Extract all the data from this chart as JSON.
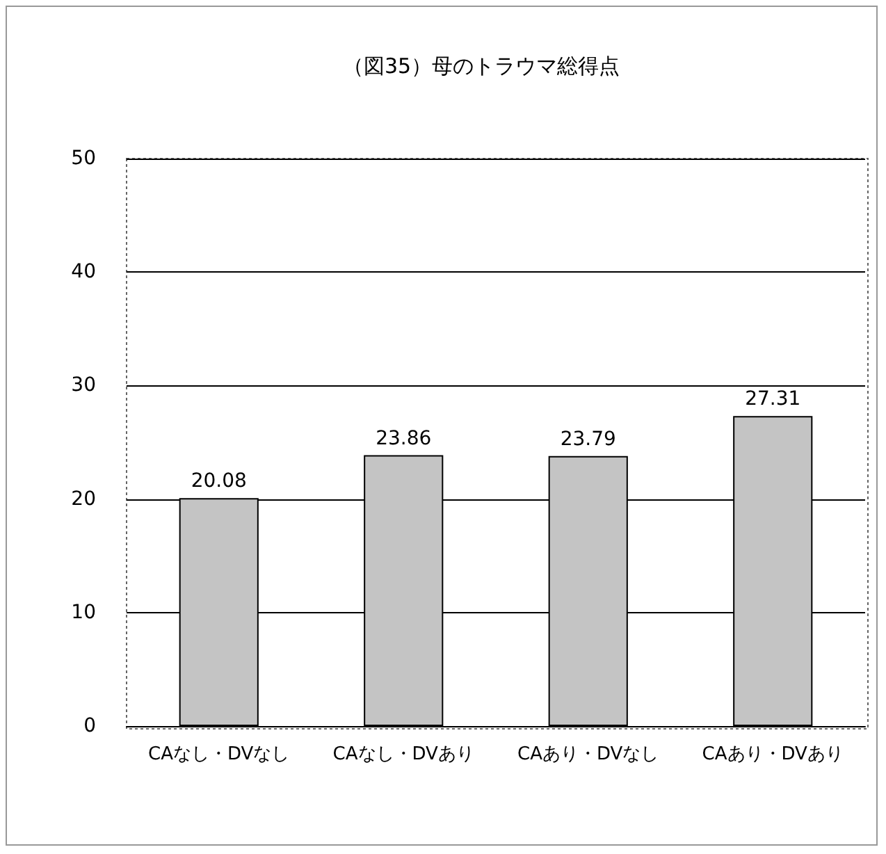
{
  "chart_data": {
    "type": "bar",
    "title": "（図35）母のトラウマ総得点",
    "categories": [
      "CAなし・DVなし",
      "CAなし・DVあり",
      "CAあり・DVなし",
      "CAあり・DVあり"
    ],
    "values": [
      20.08,
      23.86,
      23.79,
      27.31
    ],
    "color": "#c4c4c4",
    "ylim": [
      0,
      50
    ],
    "yticks": [
      0,
      10,
      20,
      30,
      40,
      50
    ],
    "grid": "y",
    "data_labels": true
  }
}
